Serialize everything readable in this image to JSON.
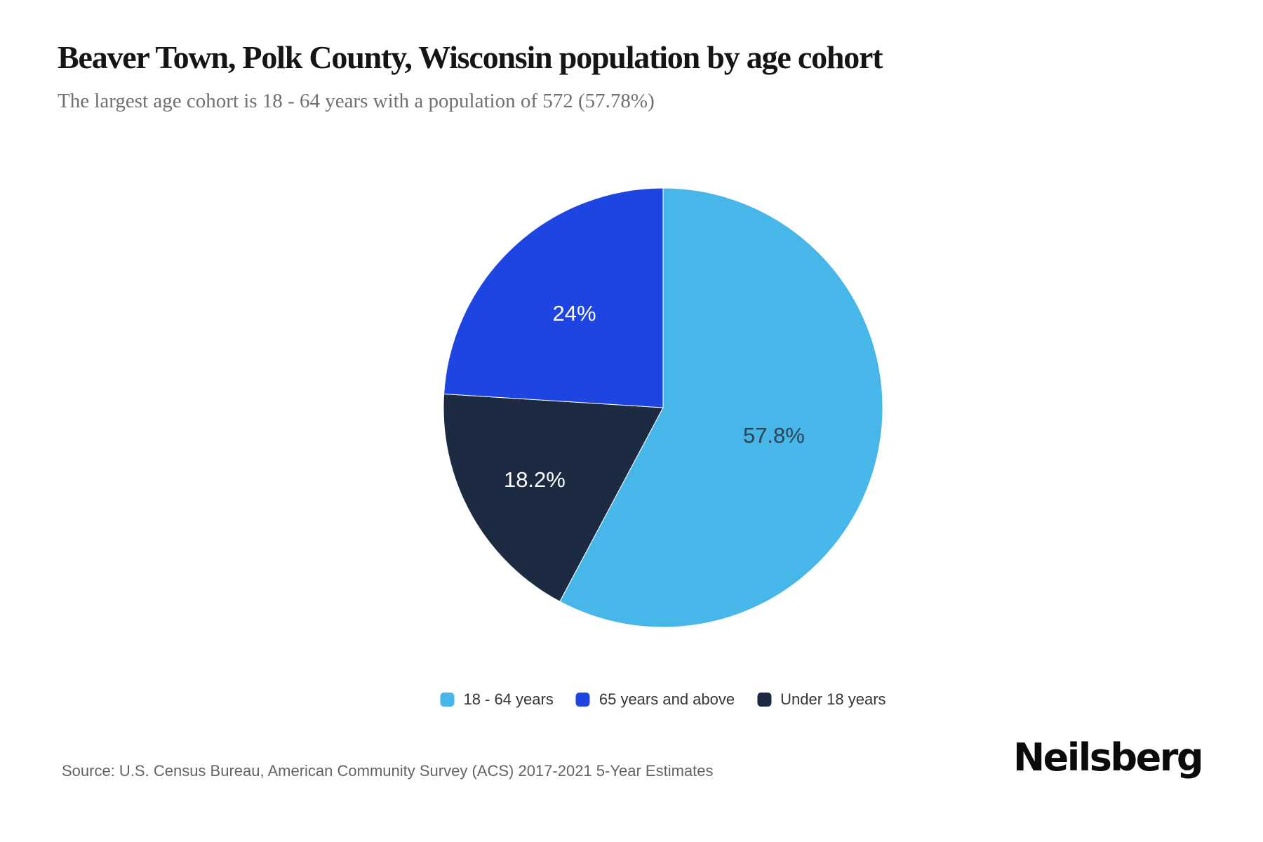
{
  "chart_data": {
    "type": "pie",
    "title": "Beaver Town, Polk County, Wisconsin population by age cohort",
    "subtitle": "The largest age cohort is 18 - 64 years with a population of 572 (57.78%)",
    "start_angle_deg": -90,
    "direction": "clockwise",
    "slices": [
      {
        "name": "18 - 64 years",
        "percent": 57.78,
        "label": "57.8%",
        "color": "#47b6e8",
        "label_color": "#2e4356",
        "label_radius": 0.52
      },
      {
        "name": "Under 18 years",
        "percent": 18.2,
        "label": "18.2%",
        "color": "#1c2b42",
        "label_color": "#ffffff",
        "label_radius": 0.67
      },
      {
        "name": "65 years and above",
        "percent": 24.0,
        "label": "24%",
        "color": "#1e44e1",
        "label_color": "#ffffff",
        "label_radius": 0.59
      }
    ],
    "legend": {
      "position": "bottom",
      "items": [
        {
          "label": "18 - 64 years",
          "color": "#47b6e8"
        },
        {
          "label": "65 years and above",
          "color": "#1e44e1"
        },
        {
          "label": "Under 18 years",
          "color": "#1c2b42"
        }
      ]
    }
  },
  "footer": {
    "source": "Source: U.S. Census Bureau, American Community Survey (ACS) 2017-2021 5-Year Estimates",
    "brand": "Neilsberg"
  }
}
